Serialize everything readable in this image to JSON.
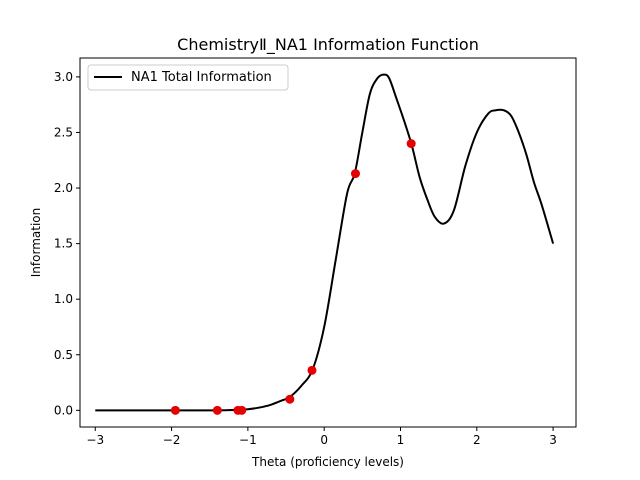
{
  "chart_data": {
    "type": "line",
    "title": "ChemistryⅡ_NA1 Information Function",
    "xlabel": "Theta (proficiency levels)",
    "ylabel": "Information",
    "xlim": [
      -3.2,
      3.3
    ],
    "ylim": [
      -0.15,
      3.17
    ],
    "x_ticks": [
      -3,
      -2,
      -1,
      0,
      1,
      2,
      3
    ],
    "x_tick_labels": [
      "−3",
      "−2",
      "−1",
      "0",
      "1",
      "2",
      "3"
    ],
    "y_ticks": [
      0.0,
      0.5,
      1.0,
      1.5,
      2.0,
      2.5,
      3.0
    ],
    "y_tick_labels": [
      "0.0",
      "0.5",
      "1.0",
      "1.5",
      "2.0",
      "2.5",
      "3.0"
    ],
    "grid": false,
    "legend_position": "upper-left",
    "series": [
      {
        "name": "NA1 Total Information",
        "style": "line",
        "color": "#000000",
        "x": [
          -3.0,
          -2.5,
          -2.0,
          -1.5,
          -1.25,
          -1.0,
          -0.85,
          -0.7,
          -0.55,
          -0.45,
          -0.3,
          -0.15,
          0.0,
          0.15,
          0.3,
          0.4,
          0.5,
          0.6,
          0.7,
          0.78,
          0.85,
          0.95,
          1.05,
          1.15,
          1.25,
          1.35,
          1.45,
          1.57,
          1.7,
          1.85,
          2.0,
          2.15,
          2.25,
          2.35,
          2.45,
          2.55,
          2.65,
          2.75,
          2.85,
          3.0
        ],
        "y": [
          0.0,
          0.0,
          0.0,
          0.0,
          0.002,
          0.01,
          0.025,
          0.05,
          0.09,
          0.12,
          0.22,
          0.37,
          0.75,
          1.35,
          1.95,
          2.13,
          2.5,
          2.85,
          2.99,
          3.02,
          2.99,
          2.8,
          2.6,
          2.38,
          2.1,
          1.9,
          1.74,
          1.68,
          1.8,
          2.2,
          2.5,
          2.67,
          2.7,
          2.7,
          2.65,
          2.5,
          2.3,
          2.05,
          1.85,
          1.5
        ]
      },
      {
        "name": "",
        "style": "scatter",
        "color": "#e60000",
        "x": [
          -1.95,
          -1.4,
          -1.13,
          -1.08,
          -0.45,
          -0.16,
          0.41,
          1.14
        ],
        "y": [
          0.0,
          0.0,
          0.0,
          0.0,
          0.1,
          0.36,
          2.13,
          2.4
        ]
      }
    ]
  }
}
